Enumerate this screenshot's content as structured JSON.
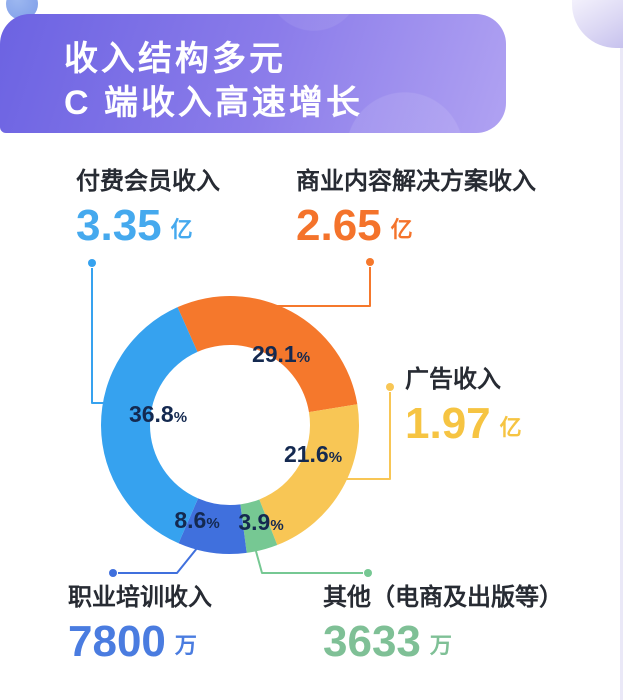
{
  "header": {
    "title_line1": "收入结构多元",
    "title_line2": "C 端收入高速增长",
    "gradient_from": "#6c63e2",
    "gradient_to": "#b0a2f2"
  },
  "percent_suffix": "%",
  "stats": [
    {
      "label": "付费会员收入",
      "value": "3.35",
      "unit": "亿",
      "color": "#45a9ee"
    },
    {
      "label": "商业内容解决方案收入",
      "value": "2.65",
      "unit": "亿",
      "color": "#f4732b"
    },
    {
      "label": "广告收入",
      "value": "1.97",
      "unit": "亿",
      "color": "#f6c442"
    },
    {
      "label": "职业培训收入",
      "value": "7800",
      "unit": "万",
      "color": "#4a7ce0"
    },
    {
      "label": "其他（电商及出版等）",
      "value": "3633",
      "unit": "万",
      "color": "#7fc096"
    }
  ],
  "chart_data": {
    "type": "pie",
    "subtype": "donut",
    "title": "收入结构多元 C 端收入高速增长",
    "start_angle_deg": -24,
    "direction": "clockwise",
    "categories": [
      "商业内容解决方案收入",
      "广告收入",
      "其他（电商及出版等）",
      "职业培训收入",
      "付费会员收入"
    ],
    "values": [
      29.1,
      21.6,
      3.9,
      8.6,
      36.8
    ],
    "slices": [
      {
        "label": "商业内容解决方案收入",
        "percent": 29.1,
        "revenue": "2.65亿",
        "color": "#f5782c"
      },
      {
        "label": "广告收入",
        "percent": 21.6,
        "revenue": "1.97亿",
        "color": "#f8c655"
      },
      {
        "label": "其他（电商及出版等）",
        "percent": 3.9,
        "revenue": "3633万",
        "color": "#76c893"
      },
      {
        "label": "职业培训收入",
        "percent": 8.6,
        "revenue": "7800万",
        "color": "#4070dd"
      },
      {
        "label": "付费会员收入",
        "percent": 36.8,
        "revenue": "3.35亿",
        "color": "#36a2ef"
      }
    ],
    "legend_position": "callout-labels"
  }
}
